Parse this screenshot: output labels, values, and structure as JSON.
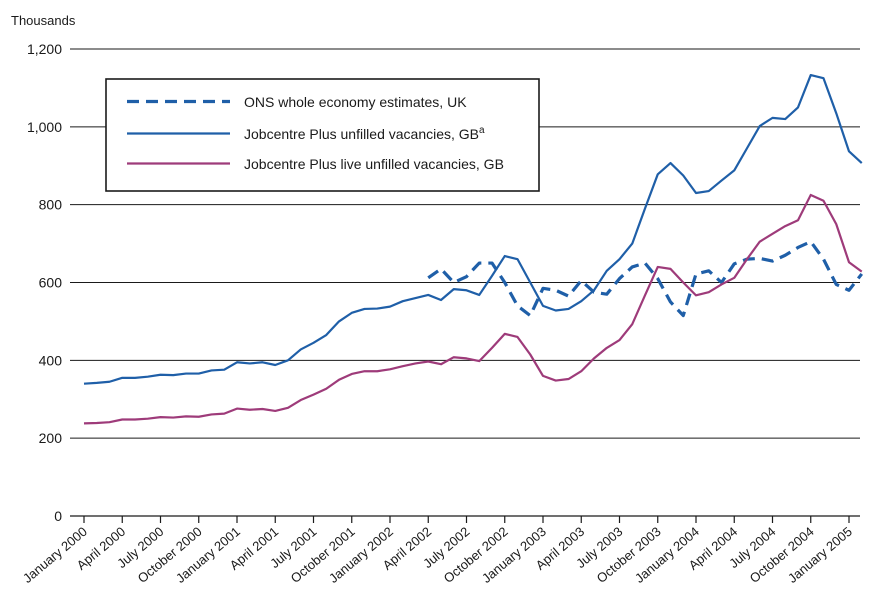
{
  "chart_data": {
    "type": "line",
    "ylabel": "Thousands",
    "ylim": [
      0,
      1200
    ],
    "yticks": [
      0,
      200,
      400,
      600,
      800,
      1000,
      1200
    ],
    "ytick_labels": [
      "0",
      "200",
      "400",
      "600",
      "800",
      "1,000",
      "1,200"
    ],
    "grid": "horizontal",
    "legend_position": "top-left",
    "x_tick_labels": [
      "January 2000",
      "April 2000",
      "July 2000",
      "October 2000",
      "January 2001",
      "April 2001",
      "July 2001",
      "October 2001",
      "January 2002",
      "April 2002",
      "July 2002",
      "October 2002",
      "January 2003",
      "April 2003",
      "July 2003",
      "October 2003",
      "January 2004",
      "April 2004",
      "July 2004",
      "October 2004",
      "January 2005"
    ],
    "series": [
      {
        "name": "ONS whole economy estimates, UK",
        "color": "#1f5fa8",
        "style": "dashed",
        "start_month": 27,
        "values": [
          612,
          635,
          600,
          615,
          650,
          650,
          600,
          540,
          515,
          585,
          580,
          565,
          605,
          575,
          570,
          610,
          640,
          650,
          610,
          550,
          515,
          622,
          630,
          600,
          648,
          660,
          662,
          655,
          670,
          690,
          705,
          660,
          595,
          580,
          622
        ]
      },
      {
        "name": "Jobcentre Plus unfilled vacancies, GB",
        "name_superscript": "a",
        "color": "#1f5fa8",
        "style": "solid",
        "start_month": 0,
        "values": [
          340,
          342,
          345,
          355,
          355,
          358,
          363,
          362,
          366,
          366,
          374,
          376,
          395,
          392,
          395,
          388,
          400,
          428,
          445,
          465,
          500,
          522,
          532,
          533,
          538,
          552,
          560,
          568,
          555,
          583,
          580,
          568,
          617,
          668,
          660,
          600,
          540,
          528,
          532,
          552,
          580,
          630,
          660,
          700,
          790,
          878,
          907,
          875,
          830,
          835,
          862,
          888,
          945,
          1002,
          1023,
          1020,
          1050,
          1133,
          1125,
          1035,
          937,
          907
        ]
      },
      {
        "name": "Jobcentre Plus live unfilled vacancies, GB",
        "color": "#9e3b7a",
        "style": "solid",
        "start_month": 0,
        "values": [
          238,
          239,
          241,
          248,
          248,
          250,
          254,
          253,
          256,
          255,
          261,
          263,
          276,
          273,
          275,
          270,
          278,
          298,
          312,
          327,
          350,
          365,
          372,
          372,
          377,
          385,
          392,
          397,
          390,
          408,
          405,
          398,
          432,
          468,
          460,
          415,
          360,
          348,
          352,
          372,
          405,
          432,
          452,
          493,
          567,
          640,
          635,
          600,
          567,
          575,
          595,
          612,
          660,
          705,
          725,
          745,
          760,
          825,
          810,
          750,
          652,
          628
        ]
      }
    ]
  }
}
